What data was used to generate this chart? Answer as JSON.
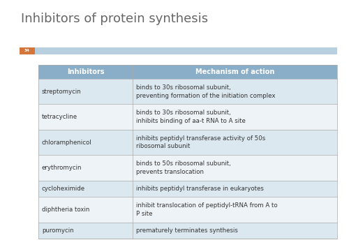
{
  "title": "Inhibitors of protein synthesis",
  "title_fontsize": 13,
  "title_color": "#666666",
  "background_color": "#ffffff",
  "slide_accent_color": "#b8cfe0",
  "orange_box_color": "#d4763b",
  "slide_number": "34",
  "header_bg_color": "#8baec8",
  "header_text_color": "#ffffff",
  "header_fontsize": 7,
  "col1_header": "Inhibitors",
  "col2_header": "Mechanism of action",
  "row_bg_even": "#dce8f0",
  "row_bg_odd": "#eef3f8",
  "row_text_color": "#333333",
  "cell_fontsize": 6.2,
  "rows": [
    [
      "streptomycin",
      "binds to 30s ribosomal subunit,\npreventing formation of the initiation complex"
    ],
    [
      "tetracycline",
      "binds to 30s ribosomal subunit,\ninhibits binding of aa-t RNA to A site"
    ],
    [
      "chloramphenicol",
      "inhibits peptidyl transferase activity of 50s\nribosomal subunit"
    ],
    [
      "erythromycin",
      "binds to 50s ribosomal subunit,\nprevents translocation"
    ],
    [
      "cycloheximide",
      "inhibits peptidyl transferase in eukaryotes"
    ],
    [
      "diphtheria toxin",
      "inhibit translocation of peptidyl-tRNA from A to\nP site"
    ],
    [
      "puromycin",
      "prematurely terminates synthesis"
    ]
  ],
  "two_line_rows": [
    0,
    1,
    2,
    3,
    5
  ],
  "single_line_rows": [
    4,
    6
  ]
}
